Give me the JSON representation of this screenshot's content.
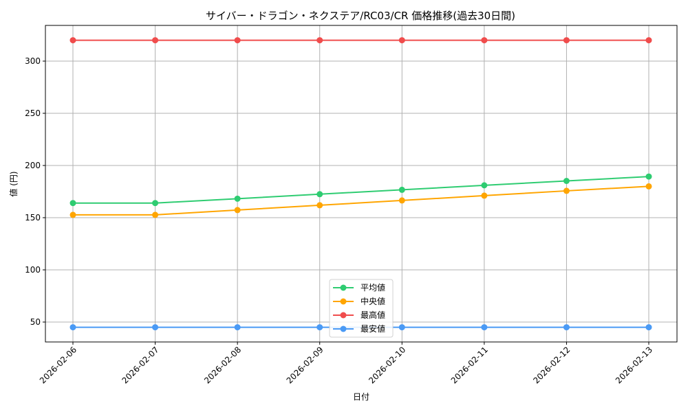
{
  "chart_data": {
    "type": "line",
    "title": "サイバー・ドラゴン・ネクステア/RC03/CR 価格推移(過去30日間)",
    "xlabel": "日付",
    "ylabel": "値 (円)",
    "categories": [
      "2026-02-06",
      "2026-02-07",
      "2026-02-08",
      "2026-02-09",
      "2026-02-10",
      "2026-02-11",
      "2026-02-12",
      "2026-02-13"
    ],
    "ylim": [
      31,
      334
    ],
    "yticks": [
      50,
      100,
      150,
      200,
      250,
      300
    ],
    "grid": true,
    "legend_position": "lower center",
    "series": [
      {
        "name": "平均値",
        "color": "#2ecc71",
        "values": [
          164,
          164,
          168.2,
          172.5,
          176.7,
          181,
          185.2,
          189.4
        ]
      },
      {
        "name": "中央値",
        "color": "#ffa500",
        "values": [
          152.7,
          152.7,
          157.3,
          161.9,
          166.5,
          171.1,
          175.7,
          180
        ]
      },
      {
        "name": "最高値",
        "color": "#f04c4c",
        "values": [
          320,
          320,
          320,
          320,
          320,
          320,
          320,
          320
        ]
      },
      {
        "name": "最安値",
        "color": "#4a9af5",
        "values": [
          45,
          45,
          45,
          45,
          45,
          45,
          45,
          45
        ]
      }
    ]
  }
}
